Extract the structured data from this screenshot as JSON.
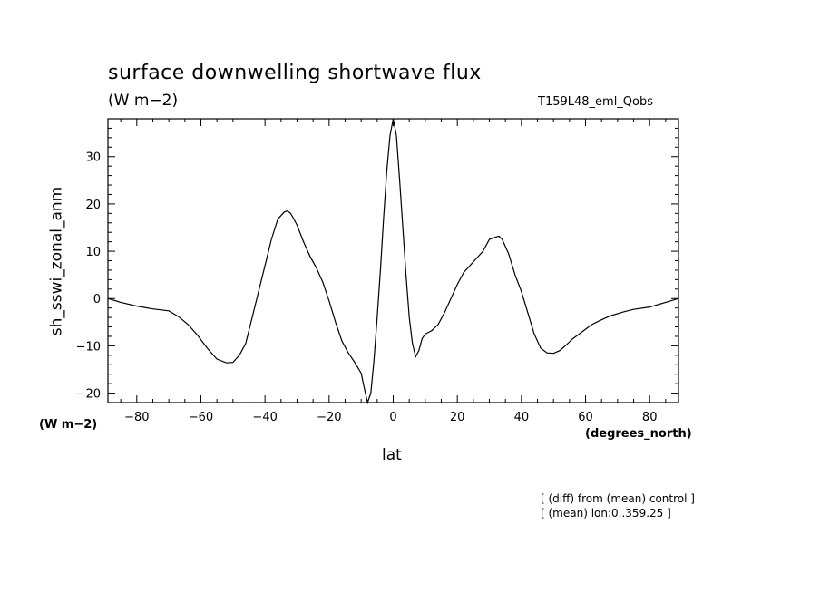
{
  "header": {
    "title": "surface downwelling shortwave flux",
    "units": "(W m−2)",
    "run_name": "T159L48_eml_Qobs"
  },
  "axes": {
    "y_unit_label": "(W m−2)",
    "x_unit_label": "(degrees_north)"
  },
  "footnotes": {
    "line1": "[ (diff) from (mean) control ]",
    "line2": "[ (mean) lon:0..359.25 ]"
  },
  "chart_data": {
    "type": "line",
    "title": "surface downwelling shortwave flux",
    "xlabel": "lat",
    "ylabel": "sh_sswi_zonal_anm",
    "xlim": [
      -89,
      89
    ],
    "ylim": [
      -22,
      38
    ],
    "x_ticks": [
      -80,
      -60,
      -40,
      -20,
      0,
      20,
      40,
      60,
      80
    ],
    "x_tick_labels": [
      "−80",
      "−60",
      "−40",
      "−20",
      "0",
      "20",
      "40",
      "60",
      "80"
    ],
    "y_ticks": [
      -20,
      -10,
      0,
      10,
      20,
      30
    ],
    "y_tick_labels": [
      "−20",
      "−10",
      "0",
      "10",
      "20",
      "30"
    ],
    "grid": false,
    "line_color": "#000000",
    "series": [
      {
        "x": [
          -89,
          -85,
          -80,
          -75,
          -70,
          -67,
          -64,
          -61,
          -58,
          -55,
          -52,
          -50,
          -48,
          -46,
          -44,
          -42,
          -40,
          -38,
          -36,
          -34,
          -33,
          -32,
          -31,
          -30,
          -28,
          -26,
          -24,
          -22,
          -20,
          -18,
          -16,
          -14,
          -12,
          -10,
          -9,
          -8,
          -7,
          -6,
          -5,
          -4,
          -3,
          -2,
          -1,
          0,
          1,
          2,
          3,
          4,
          5,
          6,
          7,
          8,
          9,
          10,
          12,
          14,
          16,
          18,
          20,
          22,
          24,
          26,
          28,
          30,
          32,
          33,
          34,
          36,
          38,
          40,
          42,
          44,
          46,
          48,
          50,
          52,
          54,
          56,
          58,
          60,
          62,
          64,
          66,
          68,
          70,
          72,
          75,
          80,
          85,
          89
        ],
        "y": [
          0,
          -0.8,
          -1.6,
          -2.2,
          -2.6,
          -3.8,
          -5.5,
          -7.8,
          -10.5,
          -12.8,
          -13.6,
          -13.5,
          -12,
          -9.5,
          -4,
          1.5,
          7,
          12.5,
          16.8,
          18.3,
          18.5,
          18,
          16.8,
          15.5,
          12,
          9,
          6.5,
          3.5,
          -0.5,
          -5,
          -9,
          -11.5,
          -13.5,
          -15.8,
          -19,
          -22,
          -20,
          -13,
          -4,
          6,
          17,
          27,
          34.5,
          38,
          34.5,
          25,
          15,
          5,
          -4,
          -9.5,
          -12.3,
          -11,
          -8.5,
          -7.5,
          -6.8,
          -5.5,
          -3,
          0,
          3,
          5.5,
          7,
          8.5,
          10,
          12.5,
          13,
          13.2,
          12.5,
          9.5,
          5,
          1.5,
          -3,
          -7.5,
          -10.5,
          -11.5,
          -11.6,
          -11,
          -9.8,
          -8.5,
          -7.5,
          -6.5,
          -5.5,
          -4.8,
          -4.2,
          -3.6,
          -3.2,
          -2.8,
          -2.3,
          -1.8,
          -0.8,
          0
        ]
      }
    ]
  }
}
